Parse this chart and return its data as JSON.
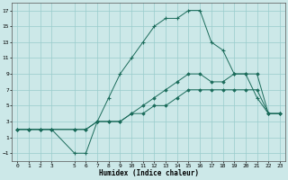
{
  "title": "",
  "xlabel": "Humidex (Indice chaleur)",
  "background_color": "#cce8e8",
  "grid_color": "#99cccc",
  "line_color": "#1a6b5a",
  "xlim": [
    -0.5,
    23.5
  ],
  "ylim": [
    -2,
    18
  ],
  "xticks": [
    0,
    1,
    2,
    3,
    5,
    6,
    7,
    8,
    9,
    10,
    11,
    12,
    13,
    14,
    15,
    16,
    17,
    18,
    19,
    20,
    21,
    22,
    23
  ],
  "yticks": [
    -1,
    1,
    3,
    5,
    7,
    9,
    11,
    13,
    15,
    17
  ],
  "line1_x": [
    0,
    1,
    2,
    3,
    5,
    6,
    7,
    8,
    9,
    10,
    11,
    12,
    13,
    14,
    15,
    16,
    17,
    18,
    19,
    20,
    21,
    22,
    23
  ],
  "line1_y": [
    2,
    2,
    2,
    2,
    2,
    2,
    3,
    3,
    3,
    4,
    4,
    5,
    5,
    6,
    7,
    7,
    7,
    7,
    7,
    7,
    7,
    4,
    4
  ],
  "line2_x": [
    0,
    1,
    2,
    3,
    5,
    6,
    7,
    8,
    9,
    10,
    11,
    12,
    13,
    14,
    15,
    16,
    17,
    18,
    19,
    20,
    21,
    22,
    23
  ],
  "line2_y": [
    2,
    2,
    2,
    2,
    2,
    2,
    3,
    3,
    3,
    4,
    5,
    6,
    7,
    8,
    9,
    9,
    8,
    8,
    9,
    9,
    9,
    4,
    4
  ],
  "line3_x": [
    0,
    1,
    2,
    3,
    5,
    6,
    7,
    8,
    9,
    10,
    11,
    12,
    13,
    14,
    15,
    16,
    17,
    18,
    19,
    20,
    21,
    22,
    23
  ],
  "line3_y": [
    2,
    2,
    2,
    2,
    -1,
    -1,
    3,
    6,
    9,
    11,
    13,
    15,
    16,
    16,
    17,
    17,
    13,
    12,
    9,
    9,
    6,
    4,
    4
  ]
}
